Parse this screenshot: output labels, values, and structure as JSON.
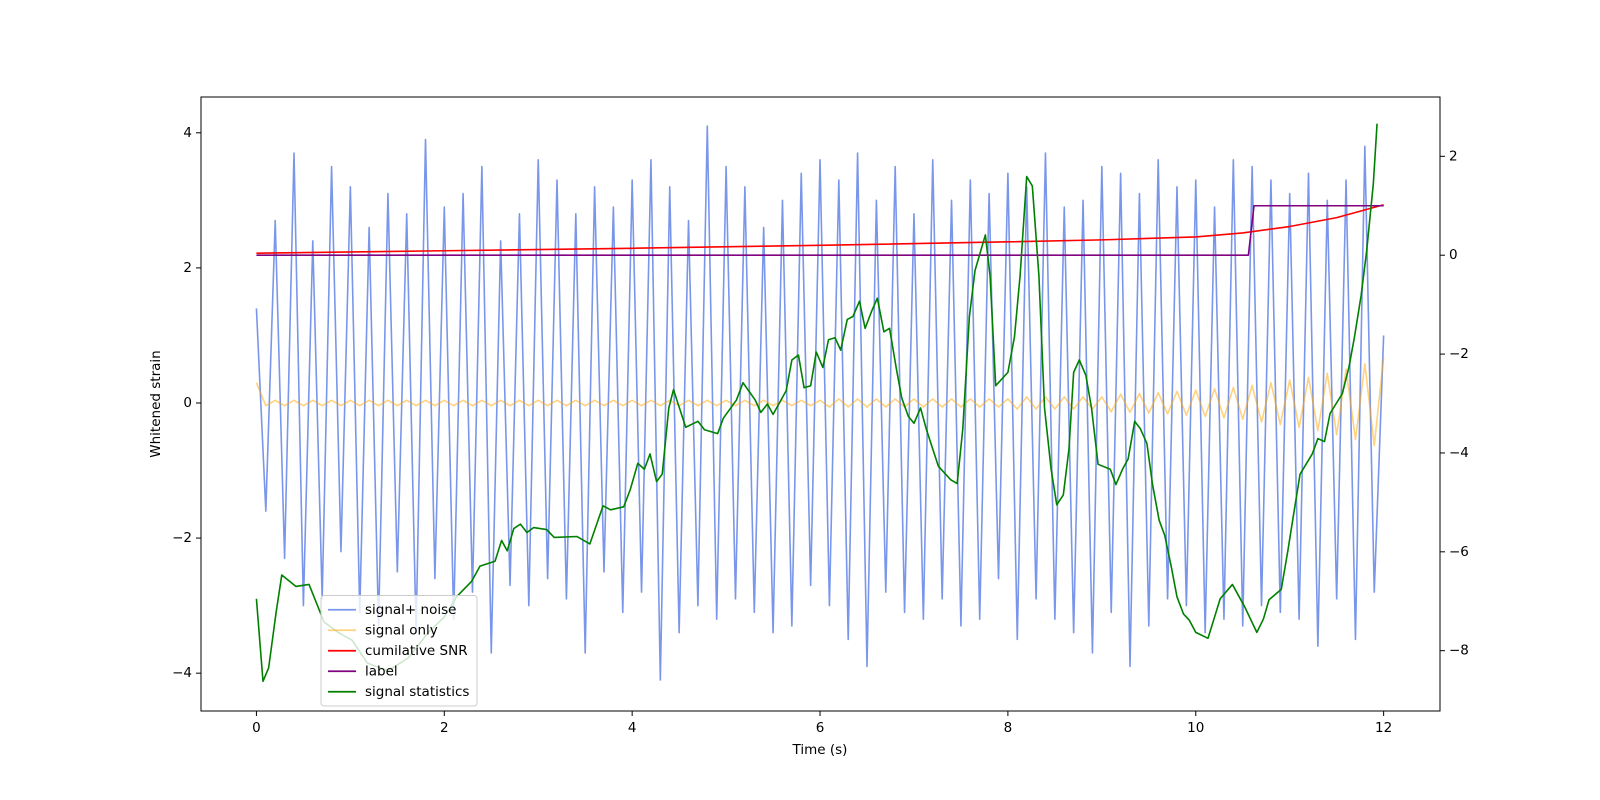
{
  "chart_data": {
    "type": "line",
    "xlabel": "Time (s)",
    "ylabel": "Whitened strain",
    "xlim": [
      -0.59,
      12.6
    ],
    "ylim": [
      -4.56,
      4.53
    ],
    "y2lim": [
      -9.22,
      3.2
    ],
    "xticks": [
      0,
      2,
      4,
      6,
      8,
      10,
      12
    ],
    "yticks": [
      {
        "value": -4,
        "label": "−4"
      },
      {
        "value": -2,
        "label": "−2"
      },
      0,
      2,
      4
    ],
    "y2ticks": [
      {
        "value": -8,
        "label": "−8"
      },
      {
        "value": -6,
        "label": "−6"
      },
      {
        "value": -4,
        "label": "−4"
      },
      {
        "value": -2,
        "label": "−2"
      },
      0,
      2
    ],
    "grid": false,
    "legend": "lower left",
    "x": [
      0,
      0.1,
      0.2,
      0.3,
      0.4,
      0.5,
      0.6,
      0.7,
      0.8,
      0.9,
      1,
      1.1,
      1.2,
      1.3,
      1.4,
      1.5,
      1.6,
      1.7,
      1.8,
      1.9,
      2,
      2.1,
      2.2,
      2.3,
      2.4,
      2.5,
      2.6,
      2.7,
      2.8,
      2.9,
      3,
      3.1,
      3.2,
      3.3,
      3.4,
      3.5,
      3.6,
      3.7,
      3.8,
      3.9,
      4,
      4.1,
      4.2,
      4.3,
      4.4,
      4.5,
      4.6,
      4.7,
      4.8,
      4.9,
      5,
      5.1,
      5.2,
      5.3,
      5.4,
      5.5,
      5.6,
      5.7,
      5.8,
      5.9,
      6,
      6.1,
      6.2,
      6.3,
      6.4,
      6.5,
      6.6,
      6.7,
      6.8,
      6.9,
      7,
      7.1,
      7.2,
      7.3,
      7.4,
      7.5,
      7.6,
      7.7,
      7.8,
      7.9,
      8,
      8.1,
      8.2,
      8.3,
      8.4,
      8.5,
      8.6,
      8.7,
      8.8,
      8.9,
      9,
      9.1,
      9.2,
      9.3,
      9.4,
      9.5,
      9.6,
      9.7,
      9.8,
      9.9,
      10,
      10.1,
      10.2,
      10.3,
      10.4,
      10.5,
      10.6,
      10.7,
      10.8,
      10.9,
      11,
      11.1,
      11.2,
      11.3,
      11.4,
      11.5,
      11.6,
      11.7,
      11.8,
      11.9,
      12
    ],
    "series": [
      {
        "name": "signal+ noise",
        "color": "#4169e1",
        "alpha": 0.7,
        "values": [
          1.4,
          -1.6,
          2.7,
          -2.3,
          3.7,
          -3.0,
          2.4,
          -2.9,
          3.5,
          -2.2,
          3.2,
          -3.1,
          2.6,
          -3.3,
          3.1,
          -2.5,
          2.8,
          -3.4,
          3.9,
          -2.6,
          2.9,
          -3.2,
          3.1,
          -2.8,
          3.5,
          -3.7,
          2.4,
          -2.7,
          2.8,
          -3.0,
          3.6,
          -2.6,
          3.3,
          -2.9,
          2.8,
          -3.7,
          3.2,
          -2.5,
          2.9,
          -3.1,
          3.3,
          -2.8,
          3.6,
          -4.1,
          3.2,
          -3.4,
          2.7,
          -3.0,
          4.1,
          -3.2,
          3.5,
          -2.9,
          3.2,
          -3.1,
          2.6,
          -3.4,
          3.0,
          -3.3,
          3.4,
          -2.7,
          3.6,
          -3.0,
          3.3,
          -3.5,
          3.7,
          -3.9,
          3.0,
          -2.8,
          3.5,
          -3.1,
          2.8,
          -3.2,
          3.6,
          -2.9,
          3.0,
          -3.3,
          3.3,
          -3.2,
          3.1,
          -2.6,
          3.4,
          -3.5,
          3.2,
          -2.9,
          3.7,
          -3.2,
          2.9,
          -3.4,
          3.0,
          -3.7,
          3.5,
          -3.1,
          3.4,
          -3.9,
          3.1,
          -3.3,
          3.6,
          -2.9,
          3.2,
          -3.0,
          3.3,
          -3.4,
          2.9,
          -3.2,
          3.6,
          -3.3,
          3.5,
          -3.0,
          3.3,
          -3.1,
          3.1,
          -3.2,
          3.4,
          -3.6,
          3.0,
          -2.9,
          3.3,
          -3.5,
          3.8,
          -2.8,
          1.0
        ]
      },
      {
        "name": "signal only",
        "color": "#ffa500",
        "alpha": 0.5,
        "values": [
          0.3,
          -0.04,
          0.04,
          -0.04,
          0.04,
          -0.04,
          0.04,
          -0.04,
          0.04,
          -0.04,
          0.04,
          -0.04,
          0.04,
          -0.04,
          0.04,
          -0.04,
          0.04,
          -0.04,
          0.04,
          -0.04,
          0.04,
          -0.04,
          0.04,
          -0.04,
          0.04,
          -0.04,
          0.04,
          -0.04,
          0.04,
          -0.04,
          0.04,
          -0.04,
          0.04,
          -0.04,
          0.04,
          -0.04,
          0.04,
          -0.04,
          0.04,
          -0.04,
          0.04,
          -0.04,
          0.04,
          -0.04,
          0.04,
          -0.04,
          0.04,
          -0.04,
          0.04,
          -0.04,
          0.04,
          -0.04,
          0.04,
          -0.04,
          0.04,
          -0.04,
          0.04,
          -0.04,
          0.04,
          -0.04,
          0.04,
          -0.06,
          0.06,
          -0.06,
          0.06,
          -0.06,
          0.06,
          -0.06,
          0.06,
          -0.06,
          0.06,
          -0.06,
          0.06,
          -0.06,
          0.06,
          -0.06,
          0.06,
          -0.06,
          0.06,
          -0.06,
          0.06,
          -0.09,
          0.09,
          -0.09,
          0.09,
          -0.09,
          0.09,
          -0.09,
          0.09,
          -0.09,
          0.09,
          -0.13,
          0.13,
          -0.14,
          0.14,
          -0.15,
          0.15,
          -0.16,
          0.17,
          -0.18,
          0.19,
          -0.2,
          0.21,
          -0.22,
          0.23,
          -0.24,
          0.26,
          -0.28,
          0.3,
          -0.32,
          0.34,
          -0.36,
          0.38,
          -0.41,
          0.44,
          -0.47,
          0.5,
          -0.54,
          0.58,
          -0.63,
          0.68
        ]
      },
      {
        "name": "cumilative SNR",
        "color": "#ff0000",
        "axis": "y2",
        "x": [
          0,
          2,
          4,
          6,
          8,
          9,
          10,
          10.5,
          11,
          11.5,
          12
        ],
        "values": [
          0.04,
          0.09,
          0.14,
          0.2,
          0.27,
          0.31,
          0.37,
          0.45,
          0.58,
          0.76,
          1.02
        ]
      },
      {
        "name": "label",
        "color": "#800080",
        "axis": "y2",
        "x": [
          0,
          10.56,
          10.62,
          12
        ],
        "values": [
          0,
          0,
          1,
          1
        ]
      },
      {
        "name": "signal statistics",
        "color": "#008000",
        "axis": "y2",
        "x": [
          0,
          0.07,
          0.13,
          0.21,
          0.27,
          0.42,
          0.56,
          0.72,
          0.87,
          1.02,
          1.18,
          1.4,
          1.62,
          1.83,
          2.0,
          2.13,
          2.29,
          2.38,
          2.54,
          2.61,
          2.67,
          2.74,
          2.81,
          2.88,
          2.95,
          3.09,
          3.17,
          3.41,
          3.55,
          3.63,
          3.69,
          3.77,
          3.91,
          3.98,
          4.06,
          4.13,
          4.19,
          4.26,
          4.32,
          4.39,
          4.44,
          4.57,
          4.7,
          4.77,
          4.91,
          4.97,
          5.11,
          5.18,
          5.31,
          5.37,
          5.44,
          5.5,
          5.64,
          5.7,
          5.77,
          5.83,
          5.9,
          5.96,
          6.03,
          6.09,
          6.16,
          6.22,
          6.29,
          6.35,
          6.42,
          6.48,
          6.55,
          6.61,
          6.68,
          6.74,
          6.81,
          6.87,
          6.94,
          7.0,
          7.07,
          7.13,
          7.2,
          7.26,
          7.39,
          7.46,
          7.52,
          7.59,
          7.65,
          7.76,
          7.81,
          7.87,
          8.0,
          8.07,
          8.13,
          8.2,
          8.26,
          8.33,
          8.39,
          8.46,
          8.52,
          8.59,
          8.65,
          8.7,
          8.76,
          8.83,
          8.89,
          8.96,
          9.09,
          9.15,
          9.22,
          9.28,
          9.35,
          9.41,
          9.48,
          9.54,
          9.61,
          9.67,
          9.74,
          9.8,
          9.87,
          9.93,
          10.0,
          10.13,
          10.2,
          10.26,
          10.39,
          10.52,
          10.65,
          10.72,
          10.78,
          10.91,
          10.98,
          11.04,
          11.11,
          11.24,
          11.3,
          11.37,
          11.43,
          11.56,
          11.63,
          11.69,
          11.76,
          11.82,
          11.89,
          11.93
        ],
        "values": [
          -6.95,
          -8.62,
          -8.35,
          -7.22,
          -6.47,
          -6.7,
          -6.66,
          -7.42,
          -7.63,
          -7.79,
          -8.25,
          -8.41,
          -8.14,
          -7.63,
          -7.32,
          -6.91,
          -6.6,
          -6.29,
          -6.19,
          -5.77,
          -5.98,
          -5.53,
          -5.44,
          -5.61,
          -5.51,
          -5.55,
          -5.71,
          -5.69,
          -5.84,
          -5.4,
          -5.07,
          -5.15,
          -5.09,
          -4.74,
          -4.21,
          -4.33,
          -4.02,
          -4.58,
          -4.43,
          -3.09,
          -2.72,
          -3.48,
          -3.36,
          -3.53,
          -3.61,
          -3.3,
          -2.93,
          -2.58,
          -2.93,
          -3.18,
          -3.01,
          -3.22,
          -2.74,
          -2.12,
          -2.02,
          -2.68,
          -2.64,
          -1.96,
          -2.27,
          -1.71,
          -1.67,
          -1.92,
          -1.3,
          -1.24,
          -0.93,
          -1.48,
          -1.13,
          -0.87,
          -1.55,
          -1.48,
          -2.27,
          -2.89,
          -3.26,
          -3.4,
          -3.09,
          -3.51,
          -3.92,
          -4.27,
          -4.54,
          -4.62,
          -3.51,
          -1.24,
          -0.31,
          0.41,
          -0.41,
          -2.64,
          -2.37,
          -1.65,
          -0.41,
          1.59,
          1.4,
          -0.41,
          -3.09,
          -4.33,
          -5.05,
          -4.85,
          -3.92,
          -2.37,
          -2.12,
          -2.43,
          -3.09,
          -4.23,
          -4.33,
          -4.64,
          -4.33,
          -4.12,
          -3.36,
          -3.51,
          -3.81,
          -4.64,
          -5.36,
          -5.67,
          -6.31,
          -6.91,
          -7.26,
          -7.38,
          -7.63,
          -7.75,
          -7.32,
          -6.95,
          -6.66,
          -7.11,
          -7.63,
          -7.36,
          -6.97,
          -6.76,
          -5.98,
          -5.26,
          -4.43,
          -4.02,
          -3.71,
          -3.77,
          -3.2,
          -2.8,
          -2.27,
          -1.65,
          -0.82,
          0.1,
          1.44,
          2.66
        ]
      }
    ]
  }
}
